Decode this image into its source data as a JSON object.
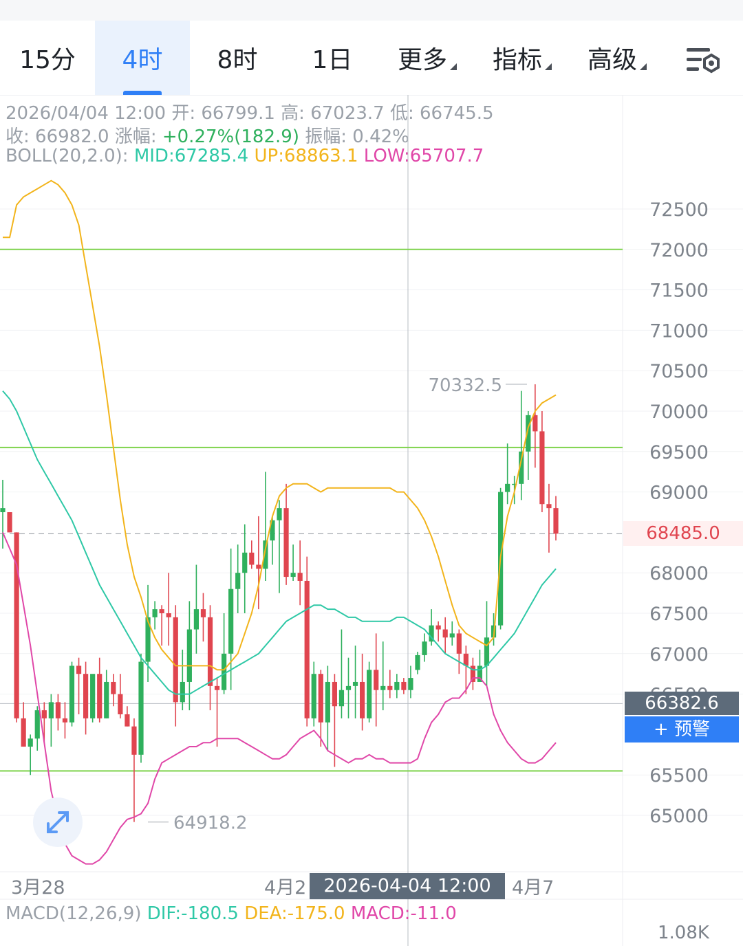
{
  "tabs": [
    {
      "label": "15分",
      "active": false,
      "has_menu": false
    },
    {
      "label": "4时",
      "active": true,
      "has_menu": false
    },
    {
      "label": "8时",
      "active": false,
      "has_menu": false
    },
    {
      "label": "1日",
      "active": false,
      "has_menu": false
    },
    {
      "label": "更多",
      "active": false,
      "has_menu": true
    },
    {
      "label": "指标",
      "active": false,
      "has_menu": true
    },
    {
      "label": "高级",
      "active": false,
      "has_menu": true
    }
  ],
  "settings_icon": "chart-settings-icon",
  "ohlc": {
    "datetime": "2026/04/04 12:00",
    "open_label": "开:",
    "open": "66799.1",
    "high_label": "高:",
    "high": "67023.7",
    "low_label": "低:",
    "low": "66745.5",
    "close_label": "收:",
    "close": "66982.0",
    "change_label": "涨幅:",
    "change": "+0.27%(182.9)",
    "amplitude_label": "振幅:",
    "amplitude": "0.42%"
  },
  "boll": {
    "label": "BOLL(20,2.0):",
    "mid": "MID:67285.4",
    "up": "UP:68863.1",
    "low": "LOW:65707.7"
  },
  "price_axis": [
    "72500",
    "72000",
    "71500",
    "71000",
    "70500",
    "70000",
    "69500",
    "69000",
    "68000",
    "67500",
    "67000",
    "66500",
    "65500",
    "65000"
  ],
  "last_price": "68485.0",
  "crosshair_price": "66382.6",
  "alert_button": "+ 预警",
  "max_label": "70332.5",
  "min_label": "64918.2",
  "date_axis": [
    "3月28",
    "4月2",
    "4月7"
  ],
  "crosshair_date": "2026-04-04 12:00",
  "macd": {
    "label": "MACD(12,26,9)",
    "dif": "DIF:-180.5",
    "dea": "DEA:-175.0",
    "macd": "MACD:-11.0"
  },
  "volume_axis": "1.08K",
  "colors": {
    "up": "#2fb05d",
    "down": "#e0454f",
    "accent": "#2f7ff6",
    "mid": "#2ec8a6",
    "upper": "#f2b41b",
    "lower": "#e047a8",
    "level": "#7ed34c"
  },
  "chart_data": {
    "type": "candlestick",
    "interval": "4h",
    "horizontal_levels": [
      72000,
      69550,
      65550
    ],
    "candles": [
      {
        "o": 68750,
        "h": 69150,
        "l": 68300,
        "c": 68800
      },
      {
        "o": 68750,
        "h": 68700,
        "l": 68500,
        "c": 68500
      },
      {
        "o": 68500,
        "h": 68500,
        "l": 66150,
        "c": 66200
      },
      {
        "o": 66200,
        "h": 66400,
        "l": 65850,
        "c": 65850
      },
      {
        "o": 65850,
        "h": 66000,
        "l": 65500,
        "c": 65950
      },
      {
        "o": 65950,
        "h": 66350,
        "l": 65800,
        "c": 66300
      },
      {
        "o": 66300,
        "h": 66400,
        "l": 65900,
        "c": 66200
      },
      {
        "o": 66200,
        "h": 66500,
        "l": 65850,
        "c": 66400
      },
      {
        "o": 66400,
        "h": 66500,
        "l": 66050,
        "c": 66200
      },
      {
        "o": 66200,
        "h": 66400,
        "l": 65950,
        "c": 66150
      },
      {
        "o": 66150,
        "h": 66900,
        "l": 66100,
        "c": 66850
      },
      {
        "o": 66850,
        "h": 66950,
        "l": 66250,
        "c": 66750
      },
      {
        "o": 66750,
        "h": 66900,
        "l": 66000,
        "c": 66200
      },
      {
        "o": 66200,
        "h": 66700,
        "l": 66150,
        "c": 66750
      },
      {
        "o": 66750,
        "h": 66950,
        "l": 66150,
        "c": 66200
      },
      {
        "o": 66200,
        "h": 66800,
        "l": 66200,
        "c": 66650
      },
      {
        "o": 66650,
        "h": 66750,
        "l": 66350,
        "c": 66500
      },
      {
        "o": 66500,
        "h": 66750,
        "l": 66200,
        "c": 66250
      },
      {
        "o": 66250,
        "h": 66350,
        "l": 66100,
        "c": 66100
      },
      {
        "o": 66100,
        "h": 66200,
        "l": 64918,
        "c": 65750
      },
      {
        "o": 65750,
        "h": 67000,
        "l": 65650,
        "c": 66900
      },
      {
        "o": 66900,
        "h": 67850,
        "l": 66650,
        "c": 67450
      },
      {
        "o": 67450,
        "h": 67650,
        "l": 67300,
        "c": 67550
      },
      {
        "o": 67550,
        "h": 67600,
        "l": 67100,
        "c": 67500
      },
      {
        "o": 67500,
        "h": 68000,
        "l": 67100,
        "c": 67450
      },
      {
        "o": 67450,
        "h": 67600,
        "l": 66100,
        "c": 66400
      },
      {
        "o": 66400,
        "h": 67050,
        "l": 66300,
        "c": 66650
      },
      {
        "o": 66650,
        "h": 67650,
        "l": 66300,
        "c": 67300
      },
      {
        "o": 67300,
        "h": 68100,
        "l": 67000,
        "c": 67550
      },
      {
        "o": 67550,
        "h": 67750,
        "l": 67150,
        "c": 67450
      },
      {
        "o": 67450,
        "h": 67600,
        "l": 66300,
        "c": 66600
      },
      {
        "o": 66600,
        "h": 66700,
        "l": 65850,
        "c": 66550
      },
      {
        "o": 66550,
        "h": 67500,
        "l": 66500,
        "c": 67000
      },
      {
        "o": 67000,
        "h": 68300,
        "l": 66550,
        "c": 67800
      },
      {
        "o": 67800,
        "h": 68350,
        "l": 67500,
        "c": 68000
      },
      {
        "o": 68000,
        "h": 68600,
        "l": 67500,
        "c": 68250
      },
      {
        "o": 68250,
        "h": 68400,
        "l": 68050,
        "c": 68100
      },
      {
        "o": 68100,
        "h": 68700,
        "l": 67550,
        "c": 68050
      },
      {
        "o": 68050,
        "h": 69250,
        "l": 67900,
        "c": 68400
      },
      {
        "o": 68400,
        "h": 68700,
        "l": 68100,
        "c": 68650
      },
      {
        "o": 68650,
        "h": 68900,
        "l": 67750,
        "c": 68800
      },
      {
        "o": 68800,
        "h": 69100,
        "l": 67850,
        "c": 67950
      },
      {
        "o": 67950,
        "h": 68350,
        "l": 67900,
        "c": 68000
      },
      {
        "o": 68000,
        "h": 68400,
        "l": 67600,
        "c": 67900
      },
      {
        "o": 67900,
        "h": 68200,
        "l": 66100,
        "c": 66200
      },
      {
        "o": 66200,
        "h": 66900,
        "l": 66100,
        "c": 66750
      },
      {
        "o": 66750,
        "h": 66800,
        "l": 65850,
        "c": 66150
      },
      {
        "o": 66150,
        "h": 66850,
        "l": 65800,
        "c": 66650
      },
      {
        "o": 66650,
        "h": 66750,
        "l": 65600,
        "c": 66350
      },
      {
        "o": 66350,
        "h": 67300,
        "l": 66200,
        "c": 66550
      },
      {
        "o": 66550,
        "h": 66950,
        "l": 66200,
        "c": 66600
      },
      {
        "o": 66600,
        "h": 67100,
        "l": 66200,
        "c": 66650
      },
      {
        "o": 66650,
        "h": 67000,
        "l": 66050,
        "c": 66200
      },
      {
        "o": 66200,
        "h": 66900,
        "l": 66150,
        "c": 66800
      },
      {
        "o": 66800,
        "h": 67250,
        "l": 66100,
        "c": 66550
      },
      {
        "o": 66550,
        "h": 67150,
        "l": 66300,
        "c": 66600
      },
      {
        "o": 66600,
        "h": 66800,
        "l": 66450,
        "c": 66550
      },
      {
        "o": 66550,
        "h": 66750,
        "l": 66450,
        "c": 66650
      },
      {
        "o": 66650,
        "h": 66700,
        "l": 66500,
        "c": 66550
      },
      {
        "o": 66550,
        "h": 66850,
        "l": 66450,
        "c": 66700
      },
      {
        "o": 66799,
        "h": 67024,
        "l": 66746,
        "c": 66982
      },
      {
        "o": 66982,
        "h": 67250,
        "l": 66900,
        "c": 67150
      },
      {
        "o": 67150,
        "h": 67550,
        "l": 67100,
        "c": 67350
      },
      {
        "o": 67350,
        "h": 67400,
        "l": 67150,
        "c": 67300
      },
      {
        "o": 67300,
        "h": 67450,
        "l": 67000,
        "c": 67200
      },
      {
        "o": 67200,
        "h": 67400,
        "l": 67100,
        "c": 67250
      },
      {
        "o": 67250,
        "h": 67300,
        "l": 66750,
        "c": 67000
      },
      {
        "o": 67000,
        "h": 67100,
        "l": 66500,
        "c": 66850
      },
      {
        "o": 66850,
        "h": 66950,
        "l": 66550,
        "c": 66650
      },
      {
        "o": 66650,
        "h": 67050,
        "l": 66700,
        "c": 66850
      },
      {
        "o": 66850,
        "h": 67650,
        "l": 66600,
        "c": 67200
      },
      {
        "o": 67200,
        "h": 67500,
        "l": 67100,
        "c": 67350
      },
      {
        "o": 67350,
        "h": 69050,
        "l": 67300,
        "c": 69000
      },
      {
        "o": 69000,
        "h": 69600,
        "l": 68850,
        "c": 69100
      },
      {
        "o": 69100,
        "h": 69200,
        "l": 68850,
        "c": 69100
      },
      {
        "o": 69100,
        "h": 70250,
        "l": 68900,
        "c": 69500
      },
      {
        "o": 69500,
        "h": 70000,
        "l": 69150,
        "c": 69950
      },
      {
        "o": 69950,
        "h": 70332,
        "l": 69300,
        "c": 69750
      },
      {
        "o": 69750,
        "h": 70000,
        "l": 68750,
        "c": 68850
      },
      {
        "o": 68850,
        "h": 69100,
        "l": 68250,
        "c": 68800
      },
      {
        "o": 68800,
        "h": 68950,
        "l": 68400,
        "c": 68485
      }
    ],
    "boll_upper": [
      72150,
      72150,
      72550,
      72650,
      72700,
      72750,
      72800,
      72850,
      72800,
      72700,
      72550,
      72300,
      71800,
      71300,
      70800,
      70200,
      69550,
      68900,
      68350,
      67950,
      67700,
      67400,
      67200,
      67050,
      66950,
      66850,
      66850,
      66850,
      66850,
      66850,
      66850,
      66800,
      66800,
      66900,
      67000,
      67250,
      67500,
      67850,
      68300,
      68700,
      68950,
      69050,
      69100,
      69100,
      69100,
      69050,
      69000,
      69050,
      69050,
      69050,
      69050,
      69050,
      69050,
      69050,
      69050,
      69050,
      69050,
      69000,
      69000,
      68900,
      68800,
      68650,
      68450,
      68200,
      67900,
      67600,
      67350,
      67250,
      67200,
      67150,
      67100,
      67200,
      68200,
      68700,
      69000,
      69400,
      69800,
      70000,
      70100,
      70150,
      70200
    ],
    "boll_mid": [
      70250,
      70150,
      70000,
      69800,
      69600,
      69400,
      69250,
      69100,
      68950,
      68800,
      68650,
      68450,
      68250,
      68050,
      67850,
      67700,
      67550,
      67400,
      67250,
      67100,
      66950,
      66850,
      66750,
      66650,
      66550,
      66500,
      66500,
      66500,
      66550,
      66600,
      66650,
      66700,
      66750,
      66800,
      66850,
      66900,
      66950,
      67000,
      67100,
      67200,
      67300,
      67400,
      67450,
      67500,
      67550,
      67600,
      67600,
      67550,
      67550,
      67500,
      67450,
      67450,
      67400,
      67400,
      67400,
      67400,
      67400,
      67450,
      67450,
      67400,
      67350,
      67300,
      67200,
      67100,
      67000,
      66950,
      66900,
      66850,
      66800,
      66800,
      66850,
      66950,
      67050,
      67150,
      67250,
      67400,
      67550,
      67700,
      67850,
      67950,
      68050
    ],
    "boll_lower": [
      68500,
      68300,
      68100,
      67600,
      67100,
      66500,
      65900,
      65300,
      64950,
      64650,
      64500,
      64450,
      64400,
      64400,
      64450,
      64550,
      64700,
      64850,
      64950,
      64980,
      65020,
      65150,
      65450,
      65650,
      65700,
      65750,
      65800,
      65850,
      65850,
      65900,
      65900,
      65950,
      65950,
      65950,
      65950,
      65900,
      65850,
      65800,
      65750,
      65700,
      65700,
      65750,
      65850,
      65950,
      66000,
      66050,
      65950,
      65800,
      65750,
      65700,
      65650,
      65700,
      65700,
      65750,
      65700,
      65700,
      65650,
      65650,
      65650,
      65650,
      65700,
      65950,
      66150,
      66250,
      66400,
      66450,
      66450,
      66550,
      66700,
      66700,
      66600,
      66250,
      66050,
      65900,
      65800,
      65700,
      65650,
      65650,
      65700,
      65800,
      65900
    ]
  }
}
